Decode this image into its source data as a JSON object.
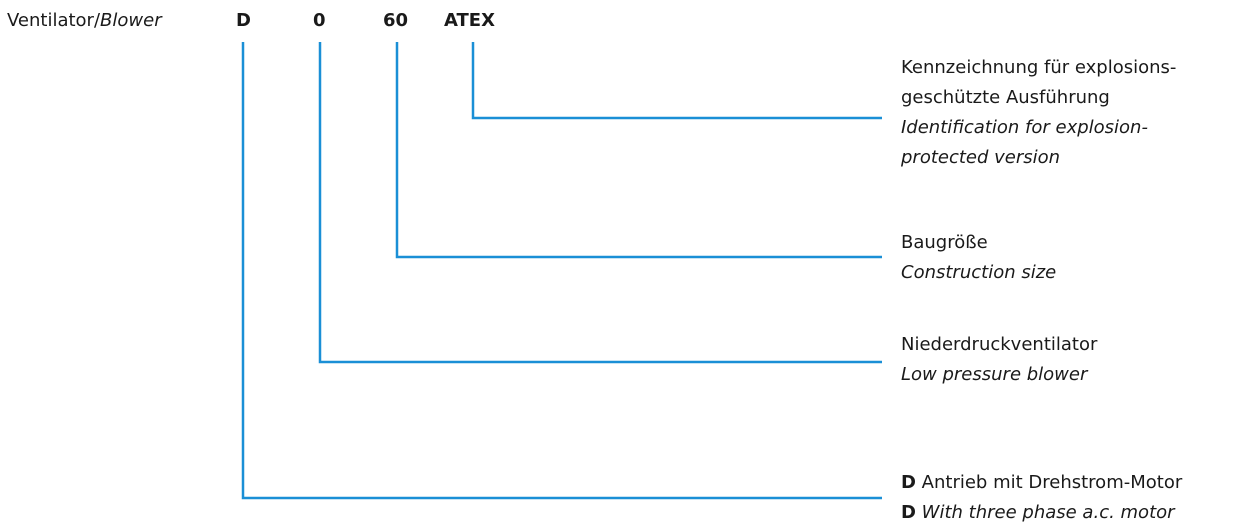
{
  "prefix": {
    "label": "Ventilator/",
    "label_italic": "Blower"
  },
  "codes": [
    "D",
    "0",
    "60",
    "ATEX"
  ],
  "descriptions": [
    {
      "lines": [
        "Kennzeichnung für explosions-",
        "geschützte Ausführung"
      ],
      "lines_italic": [
        "Identification for explosion-",
        "protected version"
      ]
    },
    {
      "lines": [
        "Baugröße"
      ],
      "lines_italic": [
        "Construction size"
      ]
    },
    {
      "lines": [
        "Niederdruckventilator"
      ],
      "lines_italic": [
        "Low pressure blower"
      ]
    },
    {
      "bold_prefix": "D",
      "line": " Antrieb mit Drehstrom-Motor",
      "bold_prefix_italic_line": "D",
      "line_italic": " With three phase a.c. motor"
    }
  ],
  "colors": {
    "connector": "#1a8fd6",
    "text": "#1a1a1a"
  }
}
